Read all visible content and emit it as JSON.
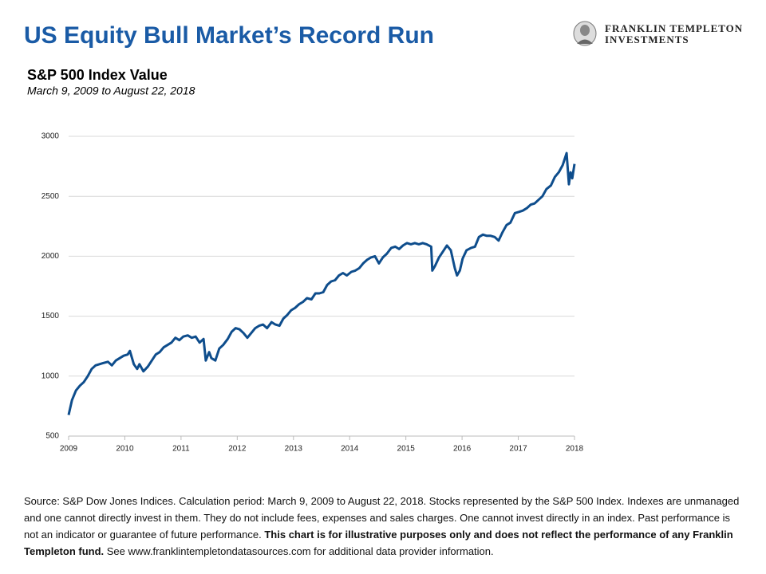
{
  "header": {
    "title": "US Equity Bull Market’s Record Run",
    "logo_line1": "FRANKLIN TEMPLETON",
    "logo_line2": "INVESTMENTS"
  },
  "chart_data": {
    "type": "line",
    "title": "S&P 500 Index Value",
    "subtitle": "March 9, 2009 to August 22, 2018",
    "xlim": [
      2009,
      2018
    ],
    "xticks": [
      2009,
      2010,
      2011,
      2012,
      2013,
      2014,
      2015,
      2016,
      2017,
      2018
    ],
    "ylim": [
      500,
      3000
    ],
    "yticks": [
      500,
      1000,
      1500,
      2000,
      2500,
      3000
    ],
    "grid": true,
    "series": [
      {
        "name": "S&P 500 Index",
        "color": "#0e4d8c",
        "x": [
          2009.0,
          2009.06,
          2009.13,
          2009.2,
          2009.27,
          2009.34,
          2009.41,
          2009.48,
          2009.55,
          2009.62,
          2009.7,
          2009.77,
          2009.84,
          2009.91,
          2009.98,
          2010.05,
          2010.09,
          2010.16,
          2010.22,
          2010.26,
          2010.33,
          2010.41,
          2010.48,
          2010.55,
          2010.62,
          2010.69,
          2010.76,
          2010.83,
          2010.9,
          2010.97,
          2011.04,
          2011.12,
          2011.19,
          2011.26,
          2011.33,
          2011.4,
          2011.44,
          2011.5,
          2011.54,
          2011.61,
          2011.68,
          2011.75,
          2011.83,
          2011.9,
          2011.97,
          2012.04,
          2012.11,
          2012.18,
          2012.25,
          2012.32,
          2012.39,
          2012.46,
          2012.53,
          2012.61,
          2012.68,
          2012.75,
          2012.82,
          2012.89,
          2012.96,
          2013.03,
          2013.1,
          2013.17,
          2013.24,
          2013.32,
          2013.39,
          2013.46,
          2013.53,
          2013.6,
          2013.67,
          2013.74,
          2013.81,
          2013.88,
          2013.95,
          2014.03,
          2014.1,
          2014.17,
          2014.24,
          2014.31,
          2014.38,
          2014.45,
          2014.52,
          2014.59,
          2014.66,
          2014.74,
          2014.81,
          2014.88,
          2014.95,
          2015.02,
          2015.09,
          2015.16,
          2015.23,
          2015.3,
          2015.37,
          2015.45,
          2015.47,
          2015.52,
          2015.59,
          2015.66,
          2015.73,
          2015.8,
          2015.87,
          2015.91,
          2015.96,
          2016.01,
          2016.08,
          2016.16,
          2016.23,
          2016.3,
          2016.37,
          2016.44,
          2016.51,
          2016.58,
          2016.65,
          2016.72,
          2016.79,
          2016.86,
          2016.94,
          2017.01,
          2017.08,
          2017.15,
          2017.22,
          2017.29,
          2017.36,
          2017.43,
          2017.5,
          2017.58,
          2017.65,
          2017.72,
          2017.79,
          2017.86,
          2017.9,
          2017.93,
          2017.96,
          2018.0
        ],
        "values": [
          676,
          800,
          880,
          920,
          950,
          1000,
          1060,
          1090,
          1100,
          1110,
          1120,
          1090,
          1130,
          1150,
          1170,
          1180,
          1210,
          1100,
          1060,
          1100,
          1040,
          1080,
          1130,
          1180,
          1200,
          1240,
          1260,
          1280,
          1320,
          1300,
          1330,
          1340,
          1320,
          1330,
          1280,
          1310,
          1130,
          1200,
          1150,
          1130,
          1230,
          1260,
          1310,
          1370,
          1400,
          1390,
          1360,
          1320,
          1360,
          1400,
          1420,
          1430,
          1400,
          1450,
          1430,
          1420,
          1480,
          1510,
          1550,
          1570,
          1600,
          1620,
          1650,
          1640,
          1690,
          1690,
          1700,
          1760,
          1790,
          1800,
          1840,
          1860,
          1840,
          1870,
          1880,
          1900,
          1940,
          1970,
          1990,
          2000,
          1940,
          1990,
          2020,
          2070,
          2080,
          2060,
          2090,
          2110,
          2100,
          2110,
          2100,
          2110,
          2100,
          2080,
          1880,
          1920,
          1990,
          2040,
          2090,
          2050,
          1900,
          1840,
          1880,
          1980,
          2050,
          2070,
          2080,
          2160,
          2180,
          2170,
          2170,
          2160,
          2130,
          2200,
          2260,
          2280,
          2360,
          2370,
          2380,
          2400,
          2430,
          2440,
          2470,
          2500,
          2560,
          2590,
          2660,
          2700,
          2760,
          2860,
          2600,
          2700,
          2650,
          2770
        ]
      }
    ]
  },
  "footnote": {
    "text1": "Source: S&P Dow Jones Indices. Calculation period: March 9, 2009 to August 22, 2018.  Stocks represented by the S&P 500 Index. Indexes are unmanaged and one cannot directly invest in them. They do not include fees, expenses and sales charges. One cannot invest directly in an index. Past performance is not an indicator or guarantee of future performance. ",
    "bold": "This chart is for illustrative purposes only and does not reflect the performance of any Franklin Templeton fund.",
    "text2": " See www.franklintempletondatasources.com for additional data provider information."
  }
}
